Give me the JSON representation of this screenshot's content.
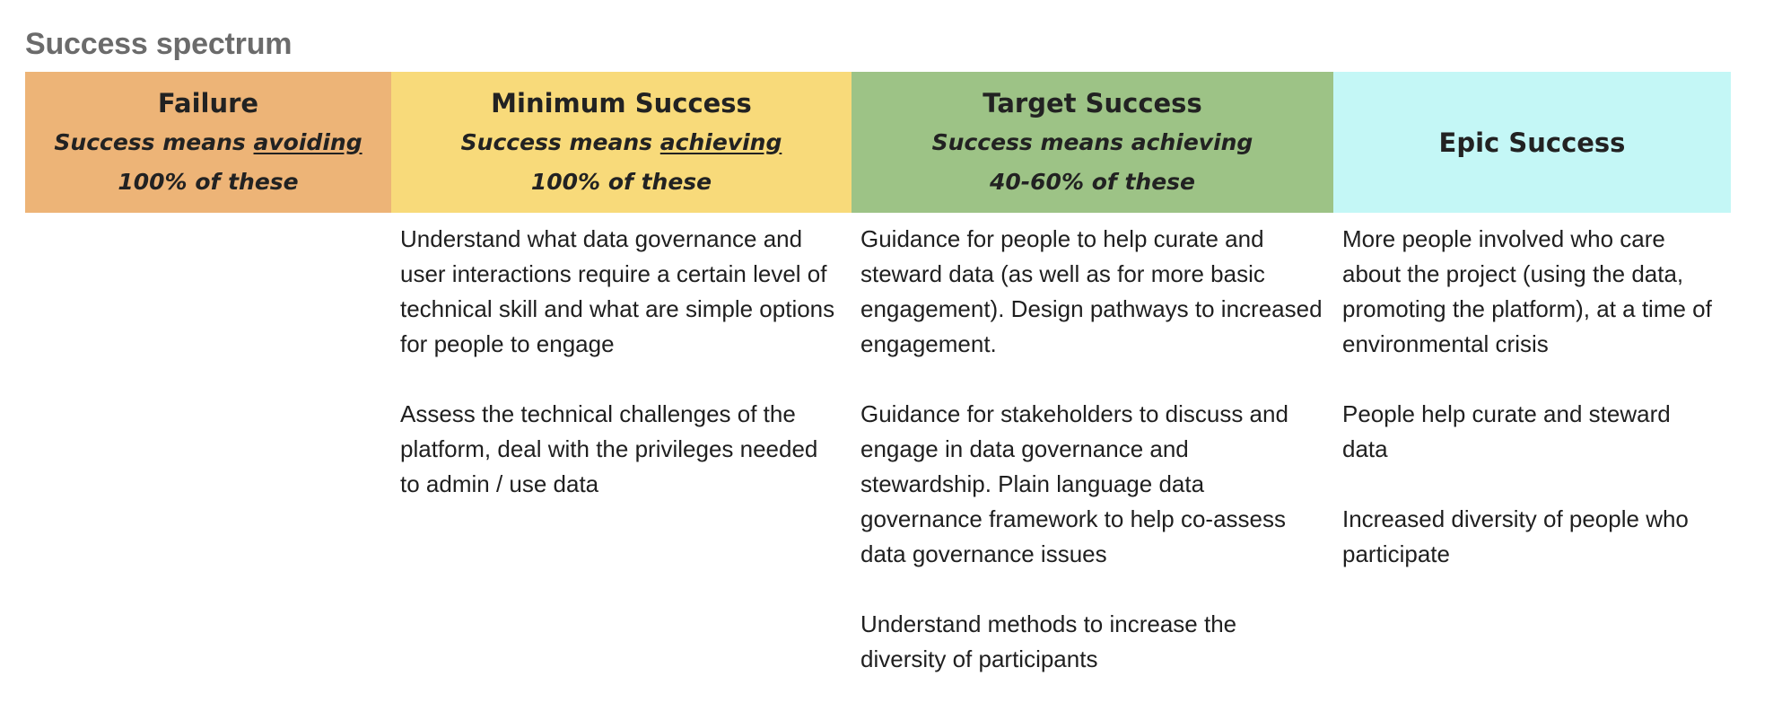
{
  "page": {
    "title": "Success spectrum"
  },
  "columns": {
    "failure": {
      "title": "Failure",
      "line1_prefix": "Success means ",
      "line1_emphasis": "avoiding",
      "line1_suffix": "",
      "line2": "100% of these",
      "color": "#edb477",
      "items": []
    },
    "minimum": {
      "title": "Minimum Success",
      "line1_prefix": "Success means ",
      "line1_emphasis": "achieving",
      "line1_suffix": "",
      "line2": "100% of these",
      "color": "#f8da7a",
      "items": [
        "Understand what data governance and user interactions require a certain level of technical skill and what are simple options for people to engage",
        "Assess the technical challenges of the platform, deal with the privileges needed to admin / use data"
      ]
    },
    "target": {
      "title": "Target Success",
      "line1_prefix": "Success means achieving",
      "line1_emphasis": "",
      "line1_suffix": "",
      "line2": "40-60% of these",
      "color": "#9dc386",
      "items": [
        "Guidance for people to help curate and steward data (as well as for more basic engagement). Design pathways to increased engagement.",
        "Guidance for stakeholders to discuss and engage in data governance and stewardship. Plain language data governance framework to help co-assess data governance issues",
        "Understand methods to increase the diversity of participants"
      ]
    },
    "epic": {
      "title": "Epic Success",
      "color": "#c4f7f6",
      "items": [
        "More people involved who care about the project (using the data, promoting the platform), at a time of environmental crisis",
        "People help curate and steward data",
        "Increased diversity of people who participate"
      ]
    }
  }
}
